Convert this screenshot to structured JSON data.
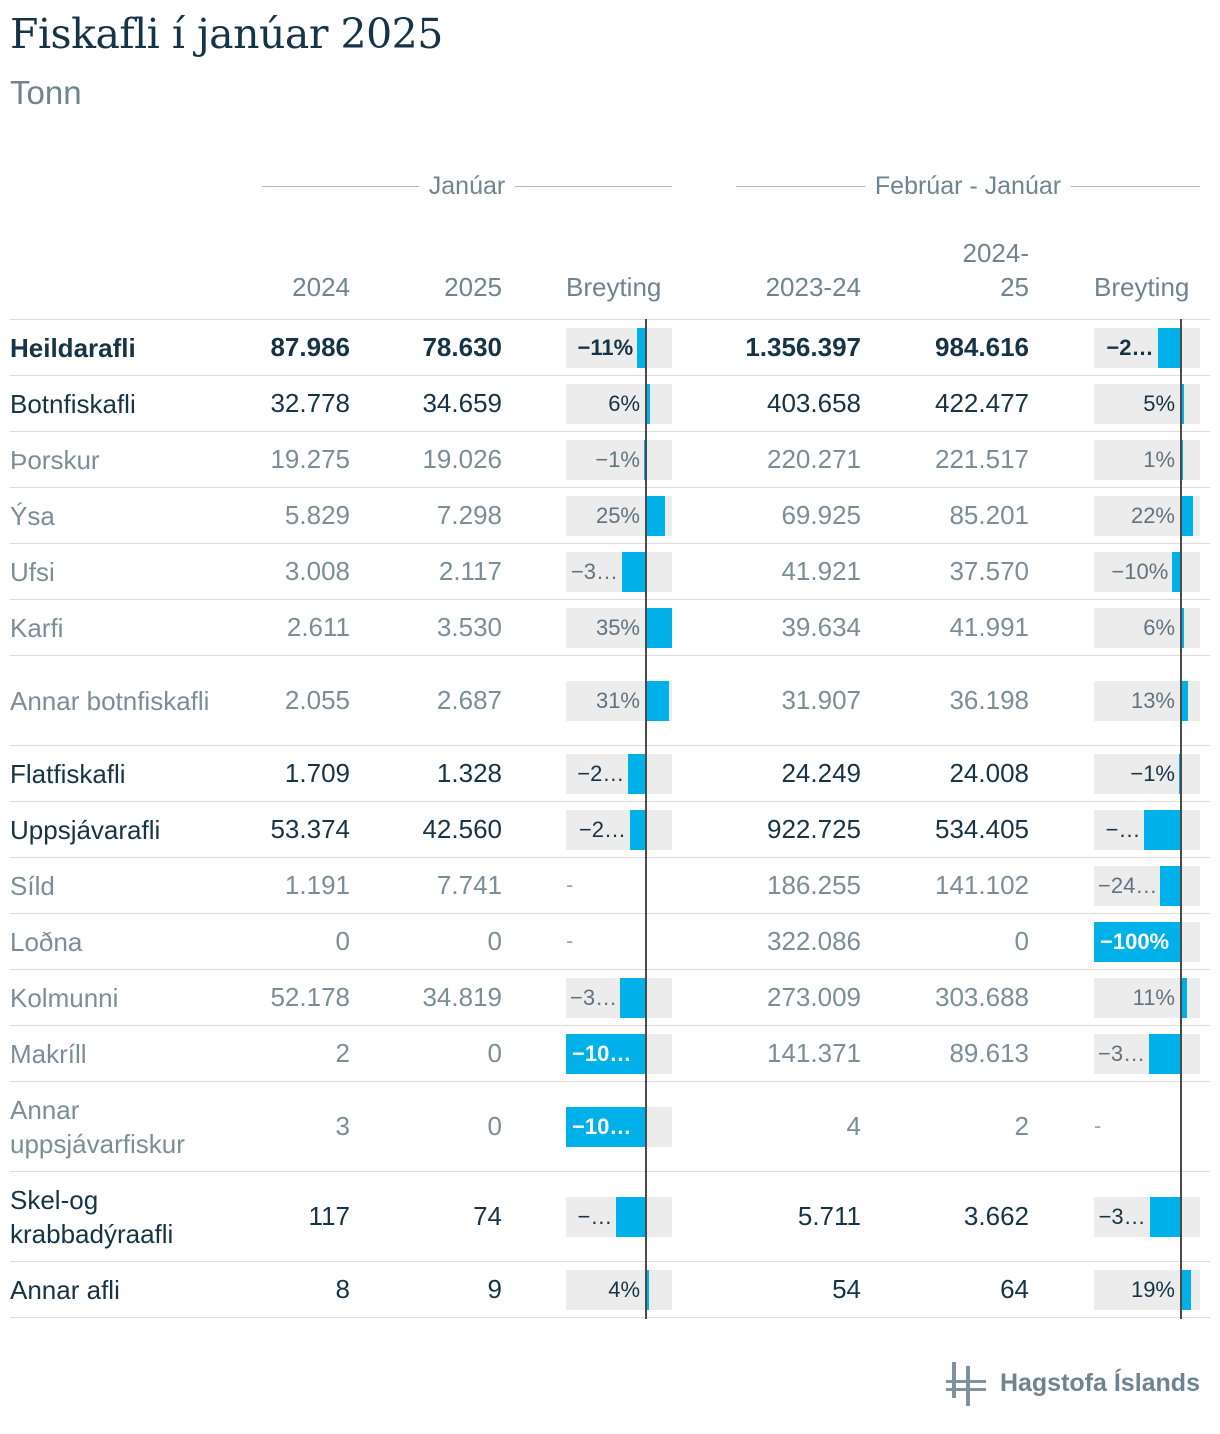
{
  "title": "Fiskafli í janúar 2025",
  "subtitle": "Tonn",
  "groups": {
    "january": "Janúar",
    "period": "Febrúar - Janúar"
  },
  "columns": {
    "c1": "2024",
    "c2": "2025",
    "c3": "Breyting",
    "c4": "2023-24",
    "c5": "2024-\n25",
    "c6": "Breyting"
  },
  "colors": {
    "bar": "#00b0e8",
    "bar_bg": "#ececec",
    "heading": "#163446",
    "muted": "#7b8e98"
  },
  "logo": {
    "text": "Hagstofa Íslands",
    "icon": "hagstofa-logo-icon"
  },
  "chart_data": {
    "type": "table",
    "title": "Fiskafli í janúar 2025",
    "subtitle": "Tonn",
    "change_axis_range": [
      -100,
      35
    ],
    "rows": [
      {
        "name": "Heildarafli",
        "level": 0,
        "jan2024": "87.986",
        "jan2025": "78.630",
        "chg1": -11,
        "chg1_label": "−11%",
        "y2324": "1.356.397",
        "y2425": "984.616",
        "chg2": -27,
        "chg2_label": "−2…"
      },
      {
        "name": "Botnfiskafli",
        "level": 1,
        "jan2024": "32.778",
        "jan2025": "34.659",
        "chg1": 6,
        "chg1_label": "6%",
        "y2324": "403.658",
        "y2425": "422.477",
        "chg2": 5,
        "chg2_label": "5%"
      },
      {
        "name": "Þorskur",
        "level": 2,
        "jan2024": "19.275",
        "jan2025": "19.026",
        "chg1": -1,
        "chg1_label": "−1%",
        "y2324": "220.271",
        "y2425": "221.517",
        "chg2": 1,
        "chg2_label": "1%"
      },
      {
        "name": "Ýsa",
        "level": 2,
        "jan2024": "5.829",
        "jan2025": "7.298",
        "chg1": 25,
        "chg1_label": "25%",
        "y2324": "69.925",
        "y2425": "85.201",
        "chg2": 22,
        "chg2_label": "22%"
      },
      {
        "name": "Ufsi",
        "level": 2,
        "jan2024": "3.008",
        "jan2025": "2.117",
        "chg1": -30,
        "chg1_label": "−3…",
        "y2324": "41.921",
        "y2425": "37.570",
        "chg2": -10,
        "chg2_label": "−10%"
      },
      {
        "name": "Karfi",
        "level": 2,
        "jan2024": "2.611",
        "jan2025": "3.530",
        "chg1": 35,
        "chg1_label": "35%",
        "y2324": "39.634",
        "y2425": "41.991",
        "chg2": 6,
        "chg2_label": "6%"
      },
      {
        "name": "Annar botnfiskafli",
        "level": 2,
        "jan2024": "2.055",
        "jan2025": "2.687",
        "chg1": 31,
        "chg1_label": "31%",
        "y2324": "31.907",
        "y2425": "36.198",
        "chg2": 13,
        "chg2_label": "13%"
      },
      {
        "name": "Flatfiskafli",
        "level": 1,
        "jan2024": "1.709",
        "jan2025": "1.328",
        "chg1": -22,
        "chg1_label": "−2…",
        "y2324": "24.249",
        "y2425": "24.008",
        "chg2": -1,
        "chg2_label": "−1%"
      },
      {
        "name": "Uppsjávarafli",
        "level": 1,
        "jan2024": "53.374",
        "jan2025": "42.560",
        "chg1": -20,
        "chg1_label": "−2…",
        "y2324": "922.725",
        "y2425": "534.405",
        "chg2": -42,
        "chg2_label": "−…"
      },
      {
        "name": "Síld",
        "level": 2,
        "jan2024": "1.191",
        "jan2025": "7.741",
        "chg1": null,
        "chg1_label": "-",
        "y2324": "186.255",
        "y2425": "141.102",
        "chg2": -24,
        "chg2_label": "−24…"
      },
      {
        "name": "Loðna",
        "level": 2,
        "jan2024": "0",
        "jan2025": "0",
        "chg1": null,
        "chg1_label": "-",
        "y2324": "322.086",
        "y2425": "0",
        "chg2": -100,
        "chg2_label": "−100%"
      },
      {
        "name": "Kolmunni",
        "level": 2,
        "jan2024": "52.178",
        "jan2025": "34.819",
        "chg1": -33,
        "chg1_label": "−3…",
        "y2324": "273.009",
        "y2425": "303.688",
        "chg2": 11,
        "chg2_label": "11%"
      },
      {
        "name": "Makríll",
        "level": 2,
        "jan2024": "2",
        "jan2025": "0",
        "chg1": -100,
        "chg1_label": "−10…",
        "y2324": "141.371",
        "y2425": "89.613",
        "chg2": -37,
        "chg2_label": "−3…"
      },
      {
        "name": "Annar uppsjávarfiskur",
        "level": 2,
        "jan2024": "3",
        "jan2025": "0",
        "chg1": -100,
        "chg1_label": "−10…",
        "y2324": "4",
        "y2425": "2",
        "chg2": null,
        "chg2_label": "-"
      },
      {
        "name": "Skel-og krabbadýraafli",
        "level": 1,
        "jan2024": "117",
        "jan2025": "74",
        "chg1": -37,
        "chg1_label": "−…",
        "y2324": "5.711",
        "y2425": "3.662",
        "chg2": -36,
        "chg2_label": "−3…"
      },
      {
        "name": "Annar afli",
        "level": 1,
        "jan2024": "8",
        "jan2025": "9",
        "chg1": 4,
        "chg1_label": "4%",
        "y2324": "54",
        "y2425": "64",
        "chg2": 19,
        "chg2_label": "19%"
      }
    ]
  }
}
